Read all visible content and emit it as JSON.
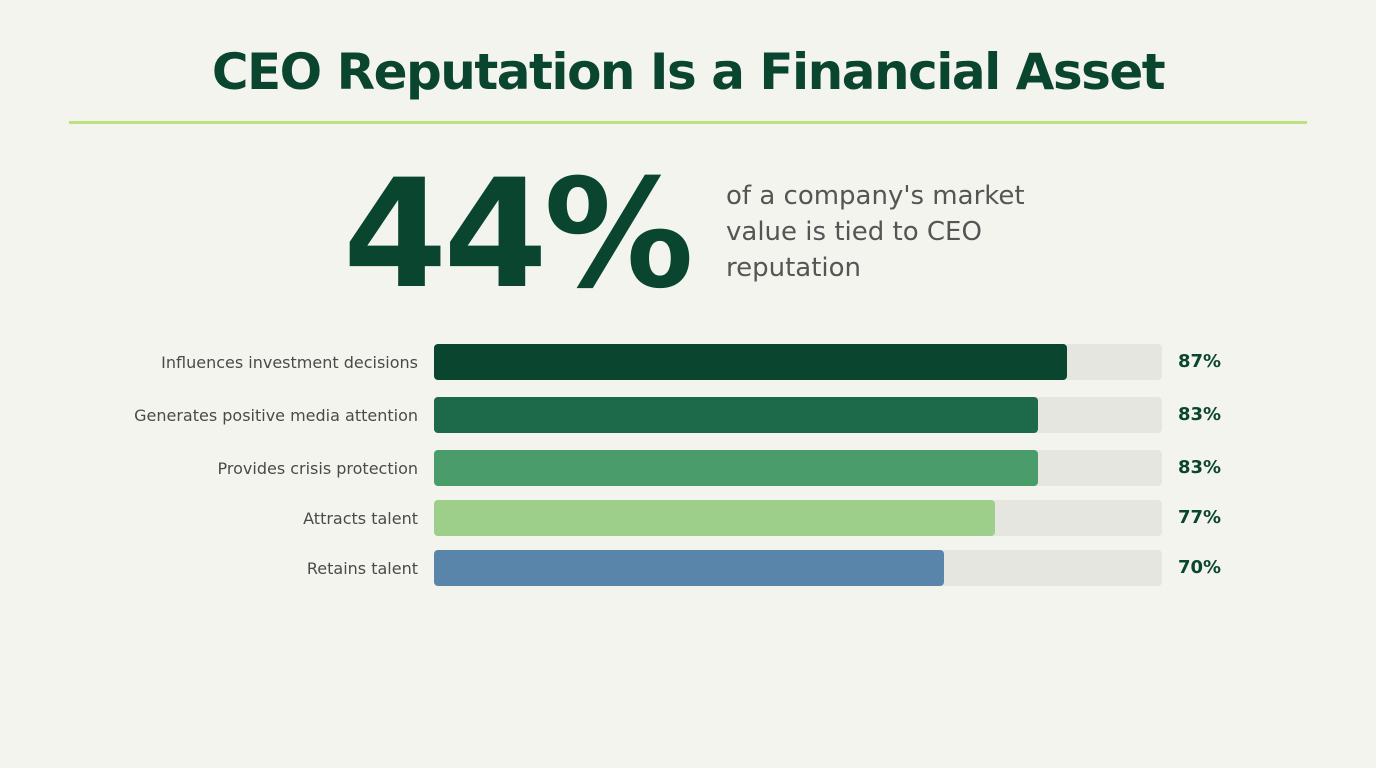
{
  "title": "CEO Reputation Is a Financial Asset",
  "headline_stat": {
    "value": "44%",
    "caption": "of a company's market value is tied to CEO reputation"
  },
  "colors": {
    "primary": "#0a4530",
    "accent_rule": "#bfe07f",
    "track": "#e6e6e1"
  },
  "chart_data": {
    "type": "bar",
    "orientation": "horizontal",
    "categories": [
      "Influences investment decisions",
      "Generates positive media attention",
      "Provides crisis protection",
      "Attracts talent",
      "Retains talent"
    ],
    "values": [
      87,
      83,
      83,
      77,
      70
    ],
    "value_labels": [
      "87%",
      "83%",
      "83%",
      "77%",
      "70%"
    ],
    "bar_colors": [
      "#0a4530",
      "#1d6a4a",
      "#4a9d6a",
      "#9dcf8a",
      "#5a85aa"
    ],
    "xlim": [
      0,
      100
    ],
    "grid": false,
    "legend": "none"
  }
}
